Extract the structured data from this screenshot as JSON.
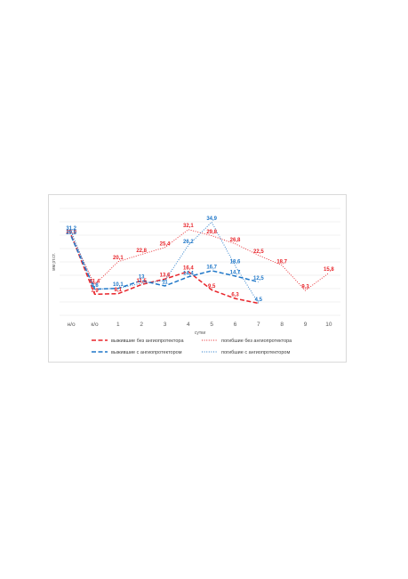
{
  "chart_data": {
    "type": "line",
    "title": "",
    "xlabel": "сутки",
    "ylabel": "мм рт.ст.",
    "categories": [
      "н/о",
      "к/о",
      "1",
      "2",
      "3",
      "4",
      "5",
      "6",
      "7",
      "8",
      "9",
      "10"
    ],
    "ylim": [
      0,
      40
    ],
    "grid": true,
    "legend_position": "bottom",
    "series": [
      {
        "name": "выжившие без ангиопротектора",
        "color": "#e8242a",
        "style": "long-dash",
        "values": [
          29.9,
          7.9,
          8.1,
          11.5,
          13.6,
          16.4,
          9.5,
          6.3,
          4.5,
          null,
          null,
          null
        ],
        "labels": [
          "29,9",
          "7,9",
          "8,1",
          "11,5",
          "13,6",
          "16,4",
          "9,5",
          "6,3",
          "",
          "",
          "",
          ""
        ]
      },
      {
        "name": "погибшие без ангиопротектора",
        "color": "#e8242a",
        "style": "dot",
        "values": [
          30.0,
          11.4,
          20.1,
          22.8,
          25.4,
          32.1,
          29.8,
          26.8,
          22.5,
          18.7,
          9.3,
          15.8
        ],
        "labels": [
          "",
          "11,4",
          "20,1",
          "22,8",
          "25,4",
          "32,1",
          "29,8",
          "26,8",
          "22,5",
          "18,7",
          "9,3",
          "15,8"
        ]
      },
      {
        "name": "выжившие с ангиопротектором",
        "color": "#1f77c8",
        "style": "long-dash",
        "values": [
          29.5,
          9.8,
          10.1,
          13.0,
          11.0,
          14.4,
          16.7,
          14.7,
          12.5,
          null,
          null,
          null
        ],
        "labels": [
          "29,5",
          "9,8",
          "10,1",
          "13",
          "11",
          "14,4",
          "16,7",
          "14,7",
          "12,5",
          "",
          "",
          ""
        ]
      },
      {
        "name": "погибшие с ангиопротектором",
        "color": "#1f77c8",
        "style": "dot",
        "values": [
          31.2,
          9.8,
          10.1,
          12.0,
          13.0,
          26.2,
          34.9,
          18.6,
          4.5,
          null,
          null,
          null
        ],
        "labels": [
          "31,2",
          "",
          "",
          "",
          "",
          "26,2",
          "34,9",
          "18,6",
          "4,5",
          "",
          "",
          ""
        ]
      }
    ]
  }
}
